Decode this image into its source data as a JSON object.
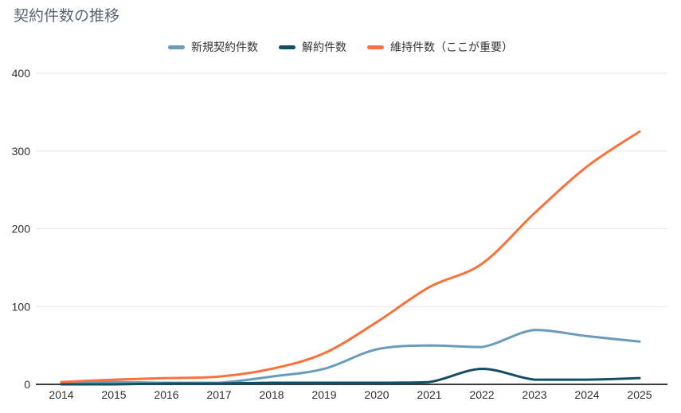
{
  "chart_data": {
    "type": "line",
    "title": "契約件数の推移",
    "x": [
      "2014",
      "2015",
      "2016",
      "2017",
      "2018",
      "2019",
      "2020",
      "2021",
      "2022",
      "2023",
      "2024",
      "2025"
    ],
    "series": [
      {
        "name": "新規契約件数",
        "color": "#6a9cb9",
        "values": [
          2,
          3,
          2,
          2,
          10,
          20,
          45,
          50,
          48,
          70,
          62,
          55
        ]
      },
      {
        "name": "解約件数",
        "color": "#134f63",
        "values": [
          0,
          0,
          1,
          1,
          2,
          2,
          2,
          3,
          20,
          6,
          6,
          8
        ]
      },
      {
        "name": "維持件数（ここが重要）",
        "color": "#fa713c",
        "values": [
          3,
          6,
          8,
          10,
          20,
          40,
          80,
          125,
          155,
          220,
          280,
          325
        ]
      }
    ],
    "xlabel": "",
    "ylabel": "",
    "ylim": [
      0,
      400
    ],
    "y_ticks": [
      0,
      100,
      200,
      300,
      400
    ],
    "grid": "horizontal-only",
    "legend_position": "top",
    "smooth": true,
    "title_color": "#5b6672",
    "label_color": "#2e2e2e",
    "grid_color": "#e6e6e6",
    "axis_color": "#3c3c3c",
    "background": "#ffffff"
  }
}
